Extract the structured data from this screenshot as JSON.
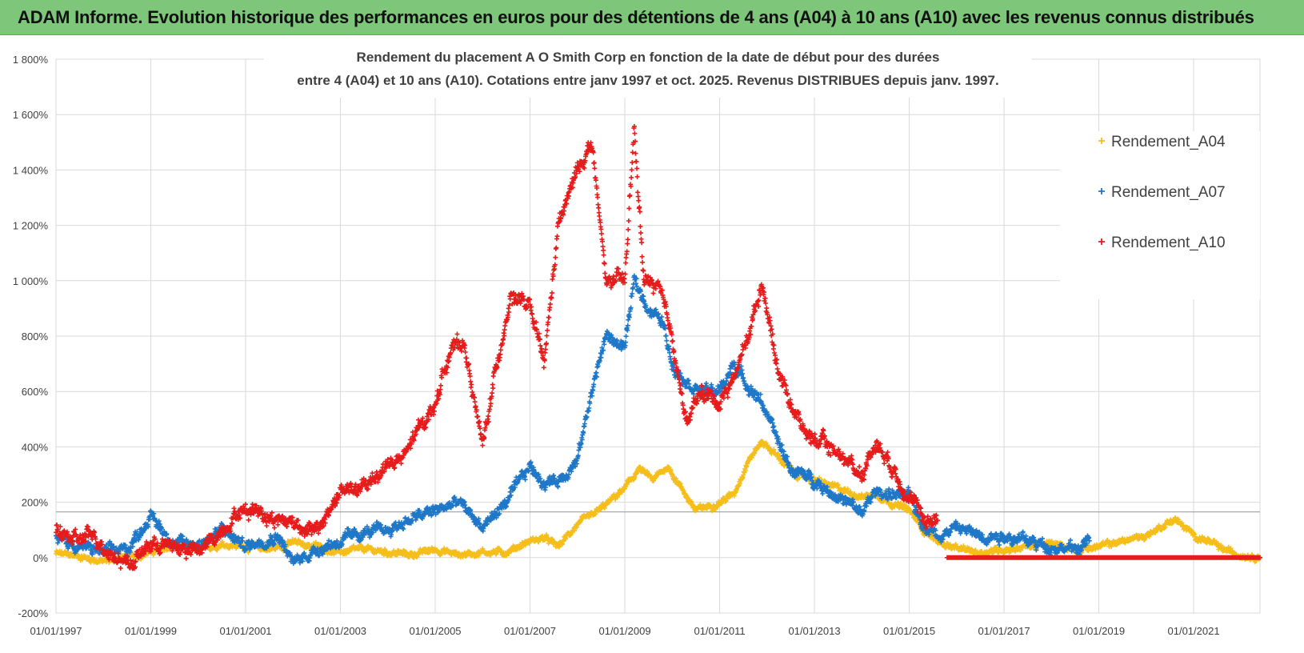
{
  "banner": {
    "title": "ADAM Informe. Evolution historique des performances en euros pour des détentions de 4 ans (A04) à 10 ans (A10) avec les revenus connus distribués"
  },
  "chart_data": {
    "type": "scatter",
    "title_lines": [
      "Rendement du placement A O Smith Corp en fonction de la date de début pour des durées",
      "entre 4 (A04) et 10 ans (A10). Cotations entre janv 1997 et oct. 2025.  Revenus DISTRIBUES depuis janv. 1997."
    ],
    "xlabel": "",
    "ylabel": "",
    "xlim": [
      1997.0,
      2022.4
    ],
    "ylim": [
      -200,
      1800
    ],
    "y_ticks": [
      -200,
      0,
      200,
      400,
      600,
      800,
      1000,
      1200,
      1400,
      1600,
      1800
    ],
    "y_tick_labels": [
      "-200%",
      "0%",
      "200%",
      "400%",
      "600%",
      "800%",
      "1 000%",
      "1 200%",
      "1 400%",
      "1 600%",
      "1 800%"
    ],
    "x_ticks": [
      1997,
      1999,
      2001,
      2003,
      2005,
      2007,
      2009,
      2011,
      2013,
      2015,
      2017,
      2019,
      2021
    ],
    "x_tick_labels": [
      "01/01/1997",
      "01/01/1999",
      "01/01/2001",
      "01/01/2003",
      "01/01/2005",
      "01/01/2007",
      "01/01/2009",
      "01/01/2011",
      "01/01/2013",
      "01/01/2015",
      "01/01/2017",
      "01/01/2019",
      "01/01/2021"
    ],
    "reference_line_y": 165,
    "grid": true,
    "legend_position": "right",
    "marker": "+",
    "series": [
      {
        "name": "Rendement_A04",
        "color": "#f5be1b",
        "x": [
          1997.0,
          1997.5,
          1998.0,
          1998.5,
          1999.0,
          1999.5,
          2000.0,
          2000.5,
          2001.0,
          2001.5,
          2002.0,
          2002.5,
          2003.0,
          2003.5,
          2004.0,
          2004.5,
          2005.0,
          2005.5,
          2006.0,
          2006.5,
          2007.0,
          2007.3,
          2007.6,
          2008.0,
          2008.3,
          2008.6,
          2009.0,
          2009.3,
          2009.6,
          2009.9,
          2010.2,
          2010.5,
          2011.0,
          2011.3,
          2011.6,
          2011.9,
          2012.2,
          2012.6,
          2013.0,
          2013.5,
          2014.0,
          2014.3,
          2014.6,
          2015.0,
          2015.3,
          2015.6,
          2016.0,
          2016.5,
          2017.0,
          2017.5,
          2018.0,
          2018.5,
          2019.0,
          2019.5,
          2020.0,
          2020.3,
          2020.6,
          2021.0,
          2021.3,
          2021.6,
          2022.0,
          2022.4
        ],
        "y": [
          15,
          5,
          -15,
          5,
          20,
          40,
          30,
          50,
          40,
          30,
          55,
          40,
          20,
          30,
          20,
          10,
          30,
          10,
          20,
          20,
          60,
          70,
          40,
          120,
          150,
          190,
          250,
          320,
          280,
          330,
          250,
          170,
          200,
          230,
          350,
          420,
          370,
          300,
          280,
          250,
          220,
          230,
          200,
          170,
          100,
          60,
          30,
          20,
          30,
          40,
          50,
          30,
          40,
          60,
          80,
          110,
          140,
          80,
          60,
          30,
          10,
          5
        ],
        "spread": 16
      },
      {
        "name": "Rendement_A07",
        "color": "#1f77c8",
        "x": [
          1997.0,
          1997.5,
          1998.0,
          1998.5,
          1999.0,
          1999.5,
          2000.0,
          2000.5,
          2001.0,
          2001.3,
          2001.7,
          2002.0,
          2002.5,
          2003.0,
          2003.5,
          2004.0,
          2004.5,
          2005.0,
          2005.5,
          2006.0,
          2006.5,
          2007.0,
          2007.3,
          2007.6,
          2008.0,
          2008.3,
          2008.6,
          2009.0,
          2009.2,
          2009.5,
          2009.8,
          2010.0,
          2010.3,
          2010.6,
          2011.0,
          2011.3,
          2011.6,
          2011.9,
          2012.2,
          2012.5,
          2013.0,
          2013.5,
          2014.0,
          2014.3,
          2014.6,
          2015.0,
          2015.3,
          2015.6,
          2016.0,
          2016.5,
          2017.0,
          2017.5,
          2018.0,
          2018.5,
          2018.8
        ],
        "y": [
          70,
          40,
          20,
          30,
          150,
          50,
          50,
          100,
          40,
          60,
          80,
          -20,
          30,
          60,
          90,
          100,
          140,
          170,
          200,
          110,
          200,
          330,
          270,
          280,
          350,
          600,
          800,
          760,
          1000,
          900,
          850,
          700,
          640,
          600,
          600,
          700,
          620,
          560,
          430,
          320,
          280,
          220,
          160,
          240,
          230,
          220,
          120,
          80,
          110,
          80,
          80,
          60,
          40,
          30,
          60
        ],
        "spread": 30
      },
      {
        "name": "Rendement_A10",
        "color": "#e61b1b",
        "x": [
          1997.0,
          1997.4,
          1997.8,
          1998.2,
          1998.6,
          1999.0,
          1999.5,
          2000.0,
          2000.4,
          2000.8,
          2001.2,
          2001.6,
          2002.0,
          2002.5,
          2003.0,
          2003.5,
          2004.0,
          2004.3,
          2004.7,
          2005.0,
          2005.3,
          2005.6,
          2006.0,
          2006.3,
          2006.6,
          2007.0,
          2007.3,
          2007.6,
          2008.0,
          2008.3,
          2008.6,
          2009.0,
          2009.2,
          2009.4,
          2009.7,
          2010.0,
          2010.3,
          2010.6,
          2011.0,
          2011.3,
          2011.6,
          2011.9,
          2012.2,
          2012.5,
          2012.8,
          2013.0,
          2013.5,
          2014.0,
          2014.3,
          2014.6,
          2015.0,
          2015.3,
          2015.6
        ],
        "y": [
          100,
          60,
          80,
          10,
          -20,
          50,
          40,
          20,
          80,
          160,
          180,
          140,
          130,
          90,
          240,
          250,
          340,
          350,
          480,
          550,
          750,
          780,
          400,
          700,
          950,
          900,
          700,
          1200,
          1400,
          1500,
          1000,
          1000,
          1550,
          1000,
          980,
          800,
          480,
          600,
          560,
          650,
          800,
          1000,
          700,
          560,
          450,
          430,
          380,
          300,
          420,
          340,
          220,
          140,
          130
        ],
        "spread": 38,
        "flat_segment": {
          "x_start": 2015.8,
          "x_end": 2022.4,
          "y": 0
        }
      }
    ]
  }
}
